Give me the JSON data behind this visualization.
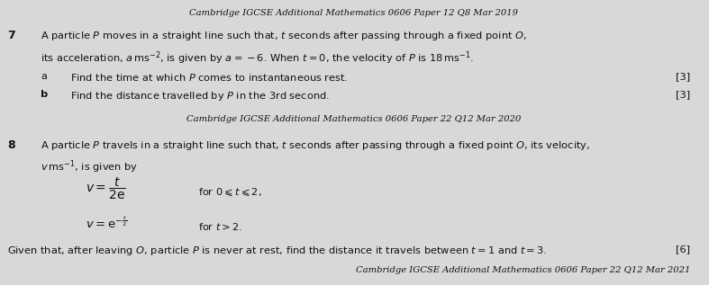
{
  "bg_color": "#d8d8d8",
  "text_color": "#111111",
  "fig_width": 7.87,
  "fig_height": 3.17,
  "dpi": 100,
  "header1": "Cambridge IGCSE Additional Mathematics 0606 Paper 12 Q8 Mar 2019",
  "header2": "Cambridge IGCSE Additional Mathematics 0606 Paper 22 Q12 Mar 2020",
  "footer": "Cambridge IGCSE Additional Mathematics 0606 Paper 22 Q12 Mar 2021",
  "q7_line1": "A particle $P$ moves in a straight line such that, $t$ seconds after passing through a fixed point $O$,",
  "q7_line2": "its acceleration, $a\\,\\mathrm{ms}^{-2}$, is given by $a=-6$. When $t=0$, the velocity of $P$ is $18\\,\\mathrm{ms}^{-1}$.",
  "q7a_text": "Find the time at which $P$ comes to instantaneous rest.",
  "q7b_text": "Find the distance travelled by $P$ in the 3rd second.",
  "q8_line1": "A particle $P$ travels in a straight line such that, $t$ seconds after passing through a fixed point $O$, its velocity,",
  "q8_line2": "$v\\,\\mathrm{ms}^{-1}$, is given by",
  "q8_v1": "$v = \\dfrac{t}{2\\mathrm{e}}$",
  "q8_for1": "for $0 \\leqslant t \\leqslant 2$,",
  "q8_v2": "$v = \\mathrm{e}^{-\\frac{t}{2}}$",
  "q8_for2": "for $t > 2$.",
  "q8_given": "Given that, after leaving $O$, particle $P$ is never at rest, find the distance it travels between $t=1$ and $t=3$.",
  "mark3": "[3]",
  "mark6": "[6]"
}
